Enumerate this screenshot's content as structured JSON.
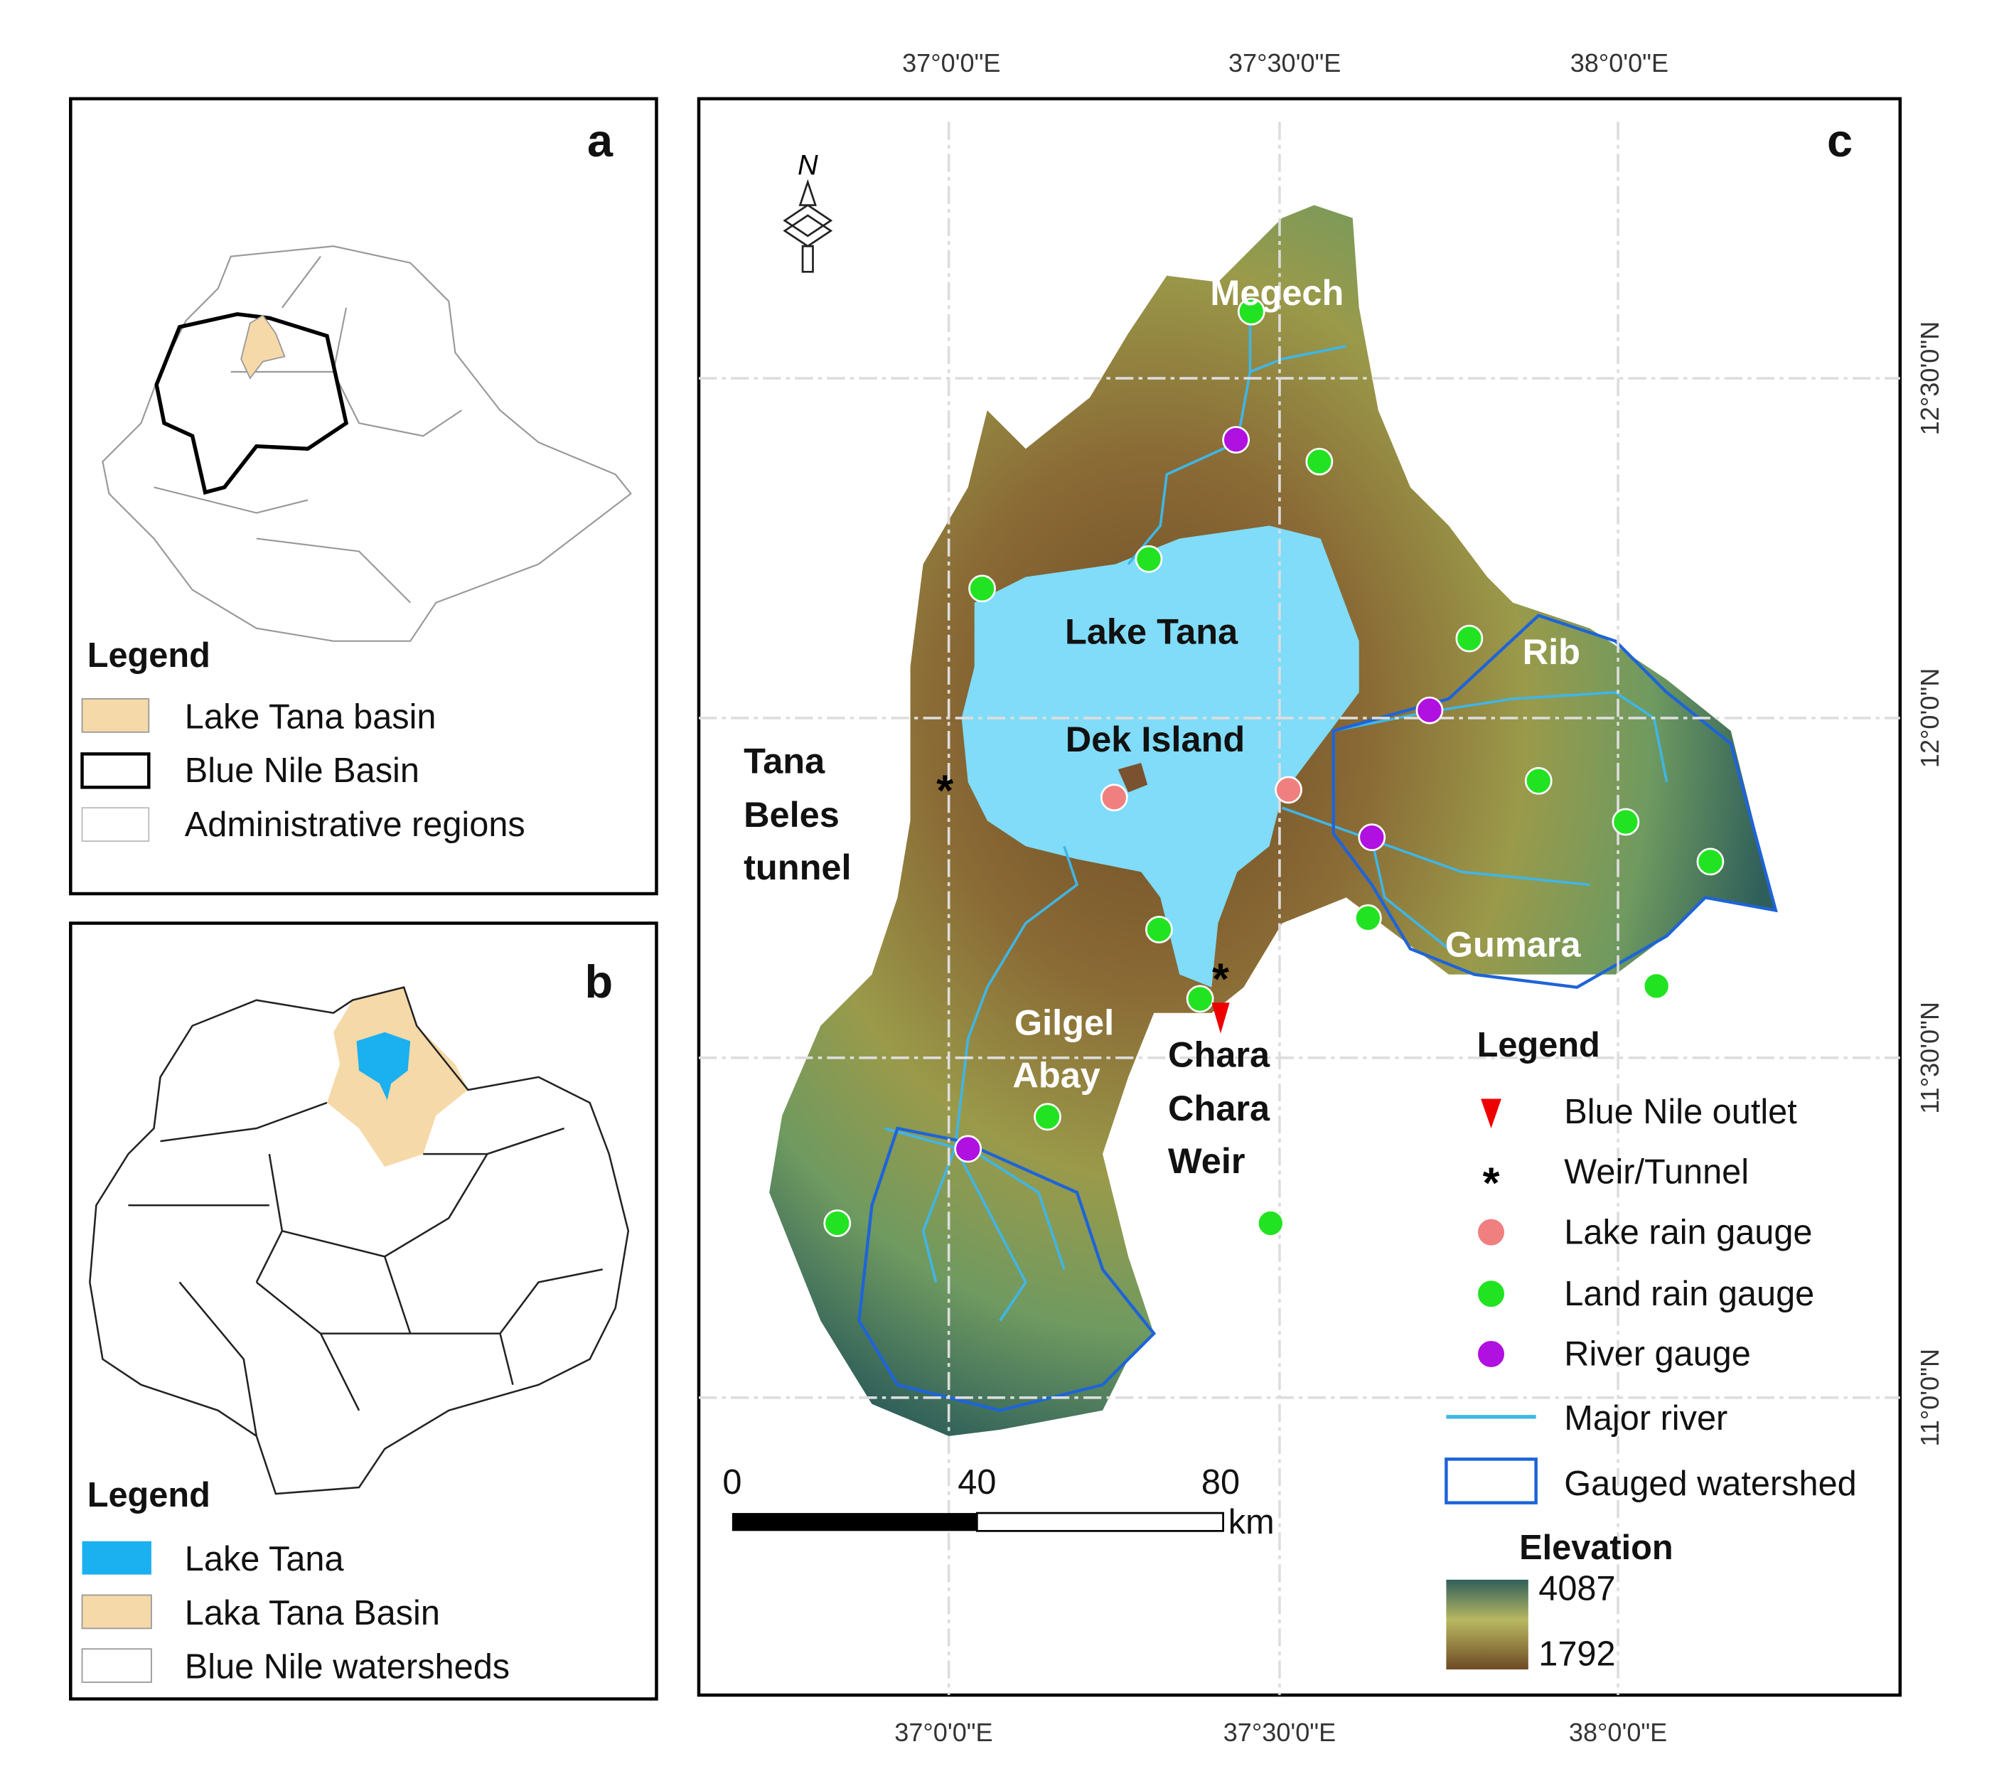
{
  "panels": {
    "a": {
      "label": "a",
      "legend": {
        "title": "Legend",
        "items": [
          "Lake Tana basin",
          "Blue Nile Basin",
          "Administrative regions"
        ]
      }
    },
    "b": {
      "label": "b",
      "legend": {
        "title": "Legend",
        "items": [
          "Lake Tana",
          "Laka Tana  Basin",
          "Blue Nile watersheds"
        ]
      }
    },
    "c": {
      "label": "c",
      "north": "N",
      "top_lon_labels": [
        "37°0'0\"E",
        "37°30'0\"E",
        "38°0'0\"E"
      ],
      "bottom_lon_labels": [
        "37°0'0\"E",
        "37°30'0\"E",
        "38°0'0\"E"
      ],
      "lat_labels": [
        "12°30'0\"N",
        "12°0'0\"N",
        "11°30'0\"N",
        "11°0'0\"N"
      ],
      "place_labels": {
        "megech": "Megech",
        "lake_tana": "Lake Tana",
        "rib": "Rib",
        "dek_island": "Dek Island",
        "tana_beles_tunnel": [
          "Tana",
          "Beles",
          "tunnel"
        ],
        "gilgel_abay": [
          "Gilgel",
          "Abay"
        ],
        "gumara": "Gumara",
        "chara_chara_weir": [
          "Chara",
          "Chara",
          "Weir"
        ]
      },
      "scale_bar": {
        "ticks": [
          0,
          40,
          80
        ],
        "unit": "km"
      },
      "legend": {
        "title": "Legend",
        "items": [
          "Blue Nile outlet",
          "Weir/Tunnel",
          "Lake rain gauge",
          "Land rain gauge",
          "River gauge",
          "Major river",
          "Gauged watershed"
        ]
      },
      "elevation": {
        "title": "Elevation",
        "max": 4087,
        "min": 1792
      }
    }
  }
}
